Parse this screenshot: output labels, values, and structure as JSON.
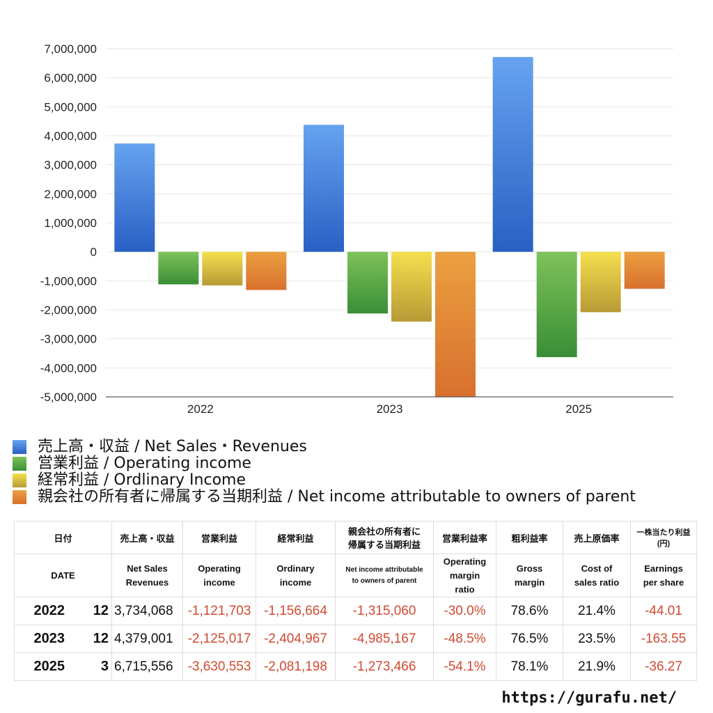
{
  "chart_data": {
    "type": "bar",
    "categories": [
      "2022",
      "2023",
      "2025"
    ],
    "ylim": [
      -5000000,
      7000000
    ],
    "yticks": [
      7000000,
      6000000,
      5000000,
      4000000,
      3000000,
      2000000,
      1000000,
      0,
      -1000000,
      -2000000,
      -3000000,
      -4000000,
      -5000000
    ],
    "ytick_labels": [
      "7,000,000",
      "6,000,000",
      "5,000,000",
      "4,000,000",
      "3,000,000",
      "2,000,000",
      "1,000,000",
      "0",
      "-1,000,000",
      "-2,000,000",
      "-3,000,000",
      "-4,000,000",
      "-5,000,000"
    ],
    "grid": true,
    "legend_placement": "bottom",
    "series": [
      {
        "name": "売上高・収益 / Net Sales・Revenues",
        "values": [
          3734068,
          4379001,
          6715556
        ],
        "color_top": "#66a3f0",
        "color_bottom": "#2a5fc4"
      },
      {
        "name": "営業利益 / Operating income",
        "values": [
          -1121703,
          -2125017,
          -3630553
        ],
        "color_top": "#7ec25a",
        "color_bottom": "#3a8e36"
      },
      {
        "name": "経常利益 / Ordlinary Income",
        "values": [
          -1156664,
          -2404967,
          -2081198
        ],
        "color_top": "#f4e04e",
        "color_bottom": "#b89a35"
      },
      {
        "name": "親会社の所有者に帰属する当期利益 / Net income attributable to owners of parent",
        "values": [
          -1315060,
          -4985167,
          -1273466
        ],
        "color_top": "#eba040",
        "color_bottom": "#d8702e"
      }
    ]
  },
  "table": {
    "header_jp": [
      "日付",
      "売上高・収益",
      "営業利益",
      "経常利益",
      "親会社の所有者に",
      "帰属する当期利益",
      "営業利益率",
      "粗利益率",
      "売上原価率",
      "一株当たり利益",
      "(円)"
    ],
    "header_en": {
      "date": "DATE",
      "sales": [
        "Net Sales",
        "Revenues"
      ],
      "op": [
        "Operating",
        "income"
      ],
      "ord": [
        "Ordinary",
        "income"
      ],
      "net": [
        "Net income attributable",
        "to owners of parent"
      ],
      "opm": [
        "Operating",
        "margin",
        "ratio"
      ],
      "gm": [
        "Gross",
        "margin"
      ],
      "cos": [
        "Cost of",
        "sales ratio"
      ],
      "eps": [
        "Earnings",
        "per share"
      ]
    },
    "rows": [
      [
        "2022",
        "12",
        "3,734,068",
        "-1,121,703",
        "-1,156,664",
        "-1,315,060",
        "-30.0%",
        "78.6%",
        "21.4%",
        "-44.01"
      ],
      [
        "2023",
        "12",
        "4,379,001",
        "-2,125,017",
        "-2,404,967",
        "-4,985,167",
        "-48.5%",
        "76.5%",
        "23.5%",
        "-163.55"
      ],
      [
        "2025",
        "3",
        "6,715,556",
        "-3,630,553",
        "-2,081,198",
        "-1,273,466",
        "-54.1%",
        "78.1%",
        "21.9%",
        "-36.27"
      ]
    ]
  },
  "site": "https://gurafu.net/"
}
